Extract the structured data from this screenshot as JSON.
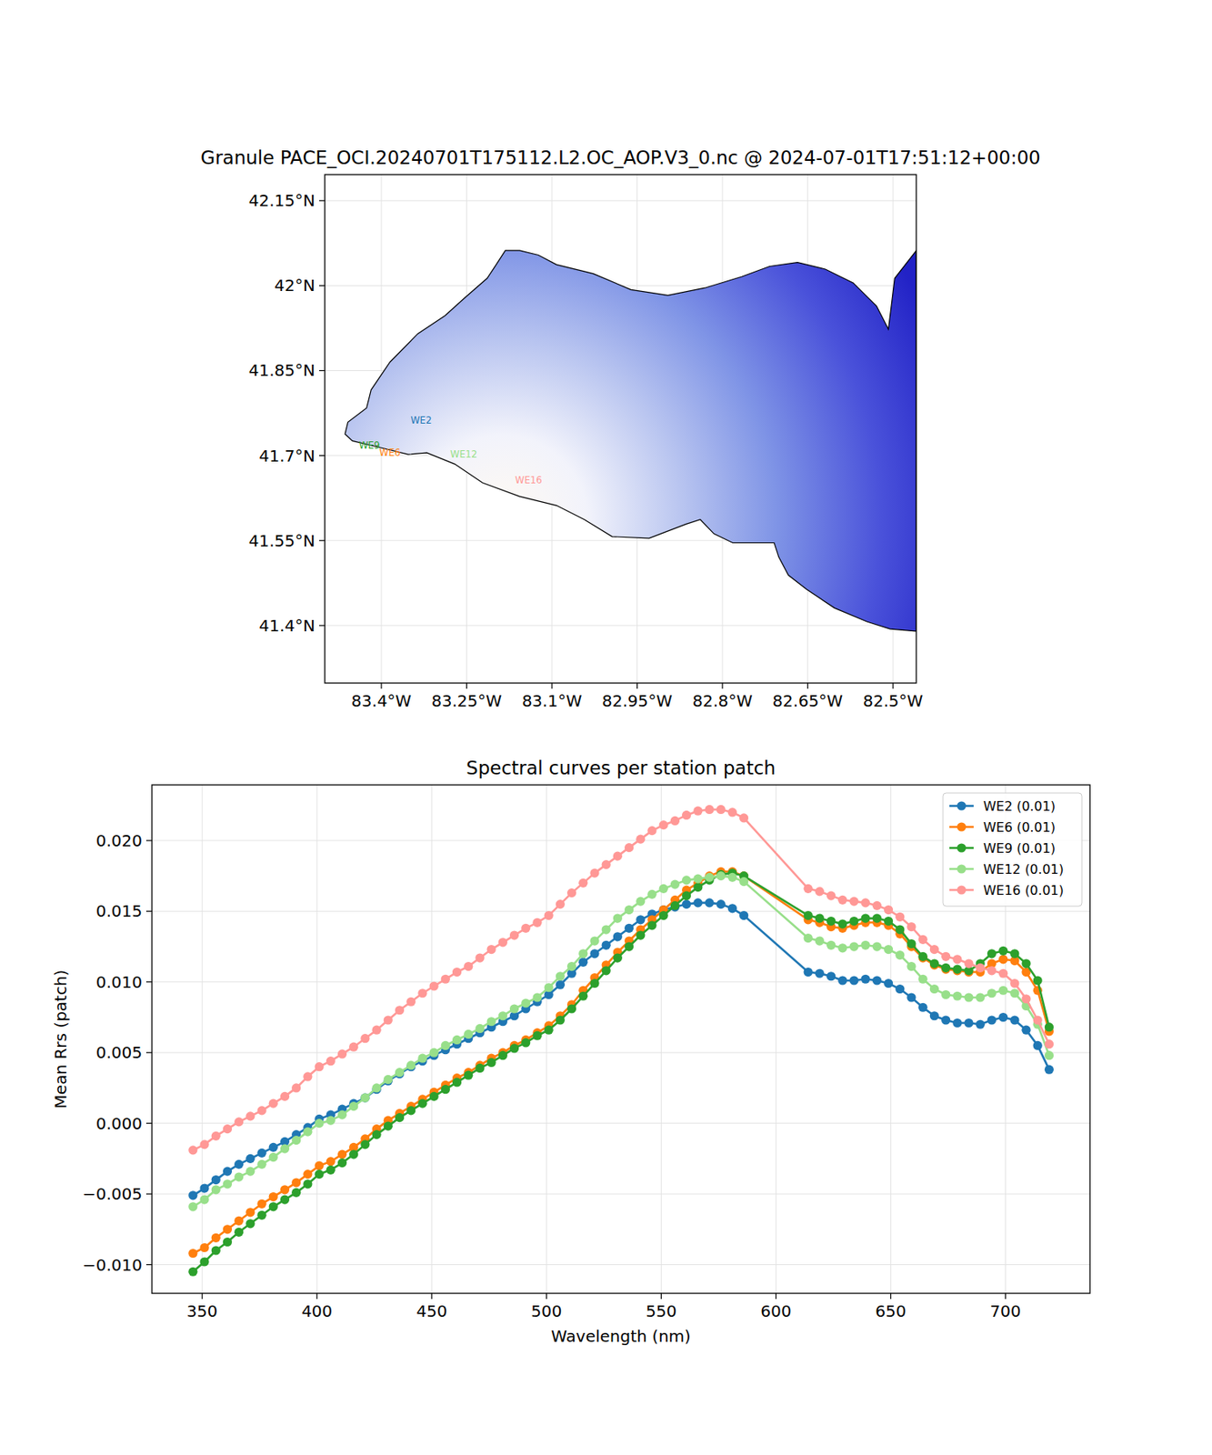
{
  "chart_data": [
    {
      "type": "map",
      "title": "Granule PACE_OCI.20240701T175112.L2.OC_AOP.V3_0.nc @ 2024-07-01T17:51:12+00:00",
      "xlim": [
        -83.4995,
        -82.459
      ],
      "ylim": [
        41.2985,
        42.196
      ],
      "xticks": [
        {
          "value": -83.4,
          "label": "83.4°W"
        },
        {
          "value": -83.25,
          "label": "83.25°W"
        },
        {
          "value": -83.1,
          "label": "83.1°W"
        },
        {
          "value": -82.95,
          "label": "82.95°W"
        },
        {
          "value": -82.8,
          "label": "82.8°W"
        },
        {
          "value": -82.65,
          "label": "82.65°W"
        },
        {
          "value": -82.5,
          "label": "82.5°W"
        }
      ],
      "yticks": [
        {
          "value": 42.15,
          "label": "42.15°N"
        },
        {
          "value": 42.0,
          "label": "42°N"
        },
        {
          "value": 41.85,
          "label": "41.85°N"
        },
        {
          "value": 41.7,
          "label": "41.7°N"
        },
        {
          "value": 41.55,
          "label": "41.55°N"
        },
        {
          "value": 41.4,
          "label": "41.4°N"
        }
      ],
      "grid": true,
      "coastline": [
        [
          -83.157,
          42.062
        ],
        [
          -83.124,
          42.054
        ],
        [
          -83.092,
          42.037
        ],
        [
          -83.027,
          42.021
        ],
        [
          -82.961,
          41.993
        ],
        [
          -82.896,
          41.983
        ],
        [
          -82.831,
          41.996
        ],
        [
          -82.766,
          42.016
        ],
        [
          -82.717,
          42.034
        ],
        [
          -82.668,
          42.041
        ],
        [
          -82.619,
          42.029
        ],
        [
          -82.57,
          42.005
        ],
        [
          -82.529,
          41.964
        ],
        [
          -82.508,
          41.923
        ],
        [
          -82.497,
          42.013
        ],
        [
          -82.459,
          42.062
        ],
        [
          -82.459,
          41.39
        ],
        [
          -82.505,
          41.394
        ],
        [
          -82.546,
          41.407
        ],
        [
          -82.603,
          41.431
        ],
        [
          -82.652,
          41.464
        ],
        [
          -82.684,
          41.489
        ],
        [
          -82.701,
          41.521
        ],
        [
          -82.709,
          41.546
        ],
        [
          -82.782,
          41.546
        ],
        [
          -82.815,
          41.562
        ],
        [
          -82.839,
          41.587
        ],
        [
          -82.864,
          41.579
        ],
        [
          -82.929,
          41.554
        ],
        [
          -82.994,
          41.557
        ],
        [
          -83.043,
          41.587
        ],
        [
          -83.092,
          41.612
        ],
        [
          -83.157,
          41.628
        ],
        [
          -83.222,
          41.652
        ],
        [
          -83.271,
          41.685
        ],
        [
          -83.32,
          41.705
        ],
        [
          -83.353,
          41.702
        ],
        [
          -83.418,
          41.718
        ],
        [
          -83.451,
          41.726
        ],
        [
          -83.464,
          41.738
        ],
        [
          -83.459,
          41.759
        ],
        [
          -83.426,
          41.784
        ],
        [
          -83.418,
          41.816
        ],
        [
          -83.385,
          41.865
        ],
        [
          -83.336,
          41.915
        ],
        [
          -83.288,
          41.947
        ],
        [
          -83.255,
          41.977
        ],
        [
          -83.214,
          42.013
        ],
        [
          -83.198,
          42.037
        ],
        [
          -83.182,
          42.062
        ]
      ],
      "stations": [
        {
          "name": "WE2",
          "lon": -83.33,
          "lat": 41.762,
          "color": "#1f77b4"
        },
        {
          "name": "WE6",
          "lon": -83.385,
          "lat": 41.705,
          "color": "#ff7f0e"
        },
        {
          "name": "WE9",
          "lon": -83.421,
          "lat": 41.718,
          "color": "#2ca02c"
        },
        {
          "name": "WE12",
          "lon": -83.255,
          "lat": 41.703,
          "color": "#98df8a"
        },
        {
          "name": "WE16",
          "lon": -83.141,
          "lat": 41.656,
          "color": "#ff9896"
        }
      ]
    },
    {
      "type": "line",
      "title": "Spectral curves per station patch",
      "x_label": "Wavelength (nm)",
      "y_label": "Mean Rrs (patch)",
      "xlim": [
        328.1,
        736.8
      ],
      "ylim": [
        -0.01203,
        0.02394
      ],
      "xticks": [
        350,
        400,
        450,
        500,
        550,
        600,
        650,
        700
      ],
      "yticks": [
        {
          "value": -0.01,
          "label": "−0.010"
        },
        {
          "value": -0.005,
          "label": "−0.005"
        },
        {
          "value": 0,
          "label": "0.000"
        },
        {
          "value": 0.005,
          "label": "0.005"
        },
        {
          "value": 0.01,
          "label": "0.010"
        },
        {
          "value": 0.015,
          "label": "0.015"
        },
        {
          "value": 0.02,
          "label": "0.020"
        }
      ],
      "grid": true,
      "legend": "upper right",
      "marker": "circle",
      "x": [
        346,
        351,
        356,
        361,
        366,
        371,
        376,
        381,
        386,
        391,
        396,
        401,
        406,
        411,
        416,
        421,
        426,
        431,
        436,
        441,
        446,
        451,
        456,
        461,
        466,
        471,
        476,
        481,
        486,
        491,
        496,
        501,
        506,
        511,
        516,
        521,
        526,
        531,
        536,
        541,
        546,
        551,
        556,
        561,
        566,
        571,
        576,
        581,
        586,
        614,
        619,
        624,
        629,
        634,
        639,
        644,
        649,
        654,
        659,
        664,
        669,
        674,
        679,
        684,
        689,
        694,
        699,
        704,
        709,
        714,
        719
      ],
      "series": [
        {
          "name": "WE2 (0.01)",
          "color": "#1f77b4",
          "values": [
            -0.0051,
            -0.0046,
            -0.004,
            -0.0034,
            -0.0029,
            -0.0025,
            -0.0021,
            -0.0017,
            -0.0013,
            -0.0008,
            -0.0003,
            0.0003,
            0.0006,
            0.001,
            0.0014,
            0.0018,
            0.0024,
            0.003,
            0.0035,
            0.004,
            0.0044,
            0.0048,
            0.0052,
            0.0056,
            0.006,
            0.0064,
            0.0068,
            0.0072,
            0.0076,
            0.0081,
            0.0086,
            0.0091,
            0.0098,
            0.0106,
            0.0114,
            0.012,
            0.0126,
            0.0132,
            0.0138,
            0.0144,
            0.0148,
            0.0151,
            0.0153,
            0.0155,
            0.0156,
            0.0156,
            0.0155,
            0.0152,
            0.0147,
            0.0107,
            0.0106,
            0.0104,
            0.0101,
            0.0101,
            0.0102,
            0.0101,
            0.0099,
            0.0095,
            0.0089,
            0.0082,
            0.0076,
            0.0073,
            0.0071,
            0.0071,
            0.007,
            0.0073,
            0.0075,
            0.0073,
            0.0066,
            0.0055,
            0.0038
          ]
        },
        {
          "name": "WE6 (0.01)",
          "color": "#ff7f0e",
          "values": [
            -0.0092,
            -0.0088,
            -0.0081,
            -0.0075,
            -0.0069,
            -0.0063,
            -0.0057,
            -0.0052,
            -0.0047,
            -0.0042,
            -0.0036,
            -0.003,
            -0.0027,
            -0.0022,
            -0.0017,
            -0.0011,
            -0.0004,
            0.0002,
            0.0007,
            0.0012,
            0.0017,
            0.0022,
            0.0027,
            0.0032,
            0.0036,
            0.0041,
            0.0046,
            0.005,
            0.0055,
            0.0059,
            0.0064,
            0.0069,
            0.0076,
            0.0084,
            0.0094,
            0.0103,
            0.0112,
            0.0121,
            0.0129,
            0.0137,
            0.0144,
            0.0151,
            0.0158,
            0.0165,
            0.017,
            0.0175,
            0.0178,
            0.0178,
            0.0175,
            0.0144,
            0.0142,
            0.0139,
            0.0138,
            0.014,
            0.0142,
            0.0142,
            0.014,
            0.0134,
            0.0125,
            0.0117,
            0.0112,
            0.0109,
            0.0108,
            0.0107,
            0.0107,
            0.0113,
            0.0116,
            0.0115,
            0.0107,
            0.0094,
            0.0065
          ]
        },
        {
          "name": "WE9 (0.01)",
          "color": "#2ca02c",
          "values": [
            -0.0105,
            -0.0098,
            -0.009,
            -0.0084,
            -0.0077,
            -0.0071,
            -0.0065,
            -0.0059,
            -0.0054,
            -0.0049,
            -0.0043,
            -0.0036,
            -0.0033,
            -0.0028,
            -0.0022,
            -0.0015,
            -0.0008,
            -0.0002,
            0.0004,
            0.0009,
            0.0014,
            0.0019,
            0.0024,
            0.0029,
            0.0034,
            0.0039,
            0.0043,
            0.0048,
            0.0053,
            0.0057,
            0.0062,
            0.0066,
            0.0073,
            0.0081,
            0.009,
            0.0099,
            0.0108,
            0.0117,
            0.0125,
            0.0133,
            0.014,
            0.0147,
            0.0154,
            0.0161,
            0.0167,
            0.0172,
            0.0176,
            0.0177,
            0.0175,
            0.0147,
            0.0145,
            0.0143,
            0.0141,
            0.0143,
            0.0145,
            0.0145,
            0.0143,
            0.0137,
            0.0127,
            0.0118,
            0.0113,
            0.011,
            0.0109,
            0.0108,
            0.0113,
            0.012,
            0.0122,
            0.012,
            0.0113,
            0.0101,
            0.0068
          ]
        },
        {
          "name": "WE12 (0.01)",
          "color": "#98df8a",
          "values": [
            -0.0059,
            -0.0054,
            -0.0047,
            -0.0043,
            -0.0038,
            -0.0034,
            -0.0029,
            -0.0024,
            -0.0018,
            -0.0012,
            -0.0006,
            0.0,
            0.0002,
            0.0006,
            0.0012,
            0.0018,
            0.0025,
            0.0031,
            0.0036,
            0.0041,
            0.0046,
            0.005,
            0.0055,
            0.0059,
            0.0063,
            0.0067,
            0.0072,
            0.0076,
            0.0081,
            0.0085,
            0.0089,
            0.0096,
            0.0104,
            0.0111,
            0.012,
            0.0129,
            0.0137,
            0.0145,
            0.0151,
            0.0157,
            0.0162,
            0.0166,
            0.0169,
            0.0172,
            0.0173,
            0.0174,
            0.0175,
            0.0174,
            0.0171,
            0.0131,
            0.0129,
            0.0126,
            0.0124,
            0.0125,
            0.0126,
            0.0125,
            0.0123,
            0.0119,
            0.0111,
            0.0102,
            0.0095,
            0.0091,
            0.009,
            0.0089,
            0.0089,
            0.0092,
            0.0094,
            0.0092,
            0.0083,
            0.007,
            0.0048
          ]
        },
        {
          "name": "WE16 (0.01)",
          "color": "#ff9896",
          "values": [
            -0.0019,
            -0.0015,
            -0.0009,
            -0.0004,
            0.0001,
            0.0005,
            0.0009,
            0.0014,
            0.0019,
            0.0025,
            0.0033,
            0.004,
            0.0044,
            0.0049,
            0.0054,
            0.006,
            0.0066,
            0.0073,
            0.008,
            0.0086,
            0.0092,
            0.0097,
            0.0102,
            0.0107,
            0.0111,
            0.0117,
            0.0123,
            0.0128,
            0.0133,
            0.0138,
            0.0142,
            0.0147,
            0.0155,
            0.0163,
            0.017,
            0.0177,
            0.0183,
            0.0189,
            0.0195,
            0.0201,
            0.0207,
            0.0211,
            0.0214,
            0.0218,
            0.0221,
            0.0222,
            0.0222,
            0.022,
            0.0216,
            0.0166,
            0.0164,
            0.0161,
            0.0158,
            0.0157,
            0.0156,
            0.0154,
            0.0151,
            0.0146,
            0.0139,
            0.013,
            0.0123,
            0.0118,
            0.0116,
            0.0113,
            0.011,
            0.0108,
            0.0106,
            0.0099,
            0.0088,
            0.0073,
            0.0056
          ]
        }
      ]
    }
  ]
}
